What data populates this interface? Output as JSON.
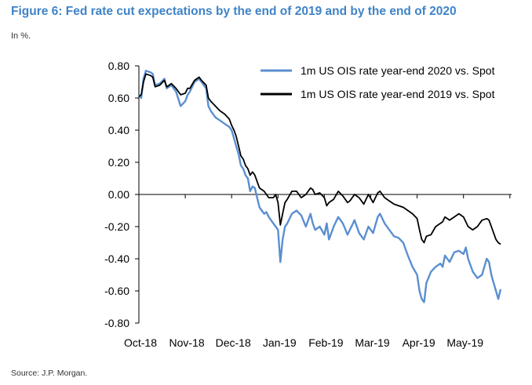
{
  "figure": {
    "title": "Figure 6: Fed rate cut expectations by the end of 2019 and by the end of 2020",
    "subtitle": "In %.",
    "source": "Source: J.P. Morgan."
  },
  "chart_data": {
    "type": "line",
    "title": "Figure 6: Fed rate cut expectations by the end of 2019 and by the end of 2020",
    "xlabel": "",
    "ylabel": "",
    "ylim": [
      -0.8,
      0.8
    ],
    "yticks": [
      0.8,
      0.6,
      0.4,
      0.2,
      0.0,
      -0.2,
      -0.4,
      -0.6,
      -0.8
    ],
    "ytick_labels": [
      "0.80",
      "0.60",
      "0.40",
      "0.20",
      "0.00",
      "-0.20",
      "-0.40",
      "-0.60",
      "-0.80"
    ],
    "x_categories": [
      "Oct-18",
      "Nov-18",
      "Dec-18",
      "Jan-19",
      "Feb-19",
      "Mar-19",
      "Apr-19",
      "May-19"
    ],
    "xlim_months": [
      0,
      7.8
    ],
    "grid": false,
    "legend_position": "top-right",
    "series": [
      {
        "name": "1m US OIS rate year-end 2020 vs. Spot",
        "color": "#5b8fd0",
        "points": [
          [
            0,
            0.62
          ],
          [
            0.05,
            0.6
          ],
          [
            0.1,
            0.72
          ],
          [
            0.15,
            0.77
          ],
          [
            0.25,
            0.76
          ],
          [
            0.3,
            0.75
          ],
          [
            0.35,
            0.68
          ],
          [
            0.45,
            0.69
          ],
          [
            0.55,
            0.72
          ],
          [
            0.6,
            0.66
          ],
          [
            0.7,
            0.68
          ],
          [
            0.8,
            0.64
          ],
          [
            0.9,
            0.55
          ],
          [
            1.0,
            0.58
          ],
          [
            1.05,
            0.62
          ],
          [
            1.1,
            0.64
          ],
          [
            1.2,
            0.7
          ],
          [
            1.3,
            0.72
          ],
          [
            1.35,
            0.7
          ],
          [
            1.45,
            0.66
          ],
          [
            1.5,
            0.55
          ],
          [
            1.55,
            0.52
          ],
          [
            1.65,
            0.48
          ],
          [
            1.75,
            0.46
          ],
          [
            1.85,
            0.44
          ],
          [
            1.95,
            0.42
          ],
          [
            2.0,
            0.4
          ],
          [
            2.05,
            0.35
          ],
          [
            2.1,
            0.3
          ],
          [
            2.15,
            0.25
          ],
          [
            2.2,
            0.18
          ],
          [
            2.25,
            0.16
          ],
          [
            2.3,
            0.12
          ],
          [
            2.35,
            0.1
          ],
          [
            2.4,
            0.02
          ],
          [
            2.45,
            0.05
          ],
          [
            2.5,
            0.04
          ],
          [
            2.55,
            -0.02
          ],
          [
            2.6,
            -0.08
          ],
          [
            2.65,
            -0.1
          ],
          [
            2.7,
            -0.12
          ],
          [
            2.75,
            -0.11
          ],
          [
            2.8,
            -0.14
          ],
          [
            2.85,
            -0.16
          ],
          [
            2.9,
            -0.18
          ],
          [
            2.95,
            -0.2
          ],
          [
            3.0,
            -0.22
          ],
          [
            3.05,
            -0.42
          ],
          [
            3.1,
            -0.28
          ],
          [
            3.15,
            -0.2
          ],
          [
            3.2,
            -0.18
          ],
          [
            3.3,
            -0.12
          ],
          [
            3.4,
            -0.1
          ],
          [
            3.5,
            -0.13
          ],
          [
            3.6,
            -0.2
          ],
          [
            3.7,
            -0.12
          ],
          [
            3.75,
            -0.18
          ],
          [
            3.8,
            -0.22
          ],
          [
            3.9,
            -0.2
          ],
          [
            4.0,
            -0.25
          ],
          [
            4.05,
            -0.18
          ],
          [
            4.1,
            -0.28
          ],
          [
            4.2,
            -0.2
          ],
          [
            4.3,
            -0.14
          ],
          [
            4.4,
            -0.18
          ],
          [
            4.5,
            -0.25
          ],
          [
            4.55,
            -0.22
          ],
          [
            4.65,
            -0.16
          ],
          [
            4.75,
            -0.24
          ],
          [
            4.85,
            -0.28
          ],
          [
            4.95,
            -0.2
          ],
          [
            5.05,
            -0.24
          ],
          [
            5.15,
            -0.14
          ],
          [
            5.2,
            -0.12
          ],
          [
            5.3,
            -0.18
          ],
          [
            5.4,
            -0.22
          ],
          [
            5.5,
            -0.26
          ],
          [
            5.6,
            -0.27
          ],
          [
            5.7,
            -0.3
          ],
          [
            5.8,
            -0.38
          ],
          [
            5.9,
            -0.45
          ],
          [
            6.0,
            -0.5
          ],
          [
            6.05,
            -0.6
          ],
          [
            6.1,
            -0.65
          ],
          [
            6.15,
            -0.67
          ],
          [
            6.2,
            -0.55
          ],
          [
            6.3,
            -0.48
          ],
          [
            6.4,
            -0.45
          ],
          [
            6.5,
            -0.43
          ],
          [
            6.55,
            -0.45
          ],
          [
            6.6,
            -0.38
          ],
          [
            6.7,
            -0.42
          ],
          [
            6.8,
            -0.36
          ],
          [
            6.9,
            -0.35
          ],
          [
            7.0,
            -0.37
          ],
          [
            7.05,
            -0.33
          ],
          [
            7.1,
            -0.4
          ],
          [
            7.2,
            -0.48
          ],
          [
            7.3,
            -0.52
          ],
          [
            7.4,
            -0.5
          ],
          [
            7.5,
            -0.4
          ],
          [
            7.55,
            -0.42
          ],
          [
            7.6,
            -0.5
          ],
          [
            7.65,
            -0.55
          ],
          [
            7.7,
            -0.6
          ],
          [
            7.75,
            -0.65
          ],
          [
            7.8,
            -0.59
          ]
        ]
      },
      {
        "name": "1m US OIS rate year-end 2019 vs. Spot",
        "color": "#000000",
        "points": [
          [
            0,
            0.61
          ],
          [
            0.05,
            0.62
          ],
          [
            0.1,
            0.7
          ],
          [
            0.15,
            0.75
          ],
          [
            0.25,
            0.74
          ],
          [
            0.3,
            0.73
          ],
          [
            0.35,
            0.67
          ],
          [
            0.45,
            0.68
          ],
          [
            0.55,
            0.71
          ],
          [
            0.6,
            0.67
          ],
          [
            0.7,
            0.69
          ],
          [
            0.8,
            0.66
          ],
          [
            0.9,
            0.62
          ],
          [
            1.0,
            0.63
          ],
          [
            1.05,
            0.66
          ],
          [
            1.1,
            0.66
          ],
          [
            1.2,
            0.71
          ],
          [
            1.3,
            0.73
          ],
          [
            1.35,
            0.71
          ],
          [
            1.45,
            0.68
          ],
          [
            1.5,
            0.6
          ],
          [
            1.55,
            0.58
          ],
          [
            1.65,
            0.55
          ],
          [
            1.75,
            0.52
          ],
          [
            1.85,
            0.5
          ],
          [
            1.95,
            0.47
          ],
          [
            2.0,
            0.43
          ],
          [
            2.05,
            0.4
          ],
          [
            2.1,
            0.36
          ],
          [
            2.15,
            0.3
          ],
          [
            2.2,
            0.24
          ],
          [
            2.25,
            0.22
          ],
          [
            2.3,
            0.18
          ],
          [
            2.35,
            0.16
          ],
          [
            2.4,
            0.12
          ],
          [
            2.45,
            0.14
          ],
          [
            2.5,
            0.12
          ],
          [
            2.55,
            0.08
          ],
          [
            2.6,
            0.04
          ],
          [
            2.7,
            0.02
          ],
          [
            2.8,
            -0.02
          ],
          [
            2.9,
            -0.02
          ],
          [
            2.95,
            0.0
          ],
          [
            3.0,
            -0.05
          ],
          [
            3.05,
            -0.19
          ],
          [
            3.1,
            -0.12
          ],
          [
            3.15,
            -0.05
          ],
          [
            3.2,
            -0.03
          ],
          [
            3.3,
            0.02
          ],
          [
            3.4,
            0.02
          ],
          [
            3.5,
            -0.02
          ],
          [
            3.6,
            0.0
          ],
          [
            3.7,
            0.04
          ],
          [
            3.75,
            0.03
          ],
          [
            3.8,
            0.0
          ],
          [
            3.9,
            0.01
          ],
          [
            4.0,
            -0.02
          ],
          [
            4.05,
            -0.07
          ],
          [
            4.1,
            -0.05
          ],
          [
            4.2,
            -0.03
          ],
          [
            4.3,
            0.02
          ],
          [
            4.4,
            -0.01
          ],
          [
            4.5,
            -0.05
          ],
          [
            4.55,
            -0.04
          ],
          [
            4.65,
            0.0
          ],
          [
            4.75,
            -0.02
          ],
          [
            4.85,
            -0.06
          ],
          [
            4.95,
            0.0
          ],
          [
            5.05,
            -0.05
          ],
          [
            5.15,
            0.01
          ],
          [
            5.2,
            0.02
          ],
          [
            5.3,
            -0.02
          ],
          [
            5.4,
            -0.04
          ],
          [
            5.5,
            -0.06
          ],
          [
            5.6,
            -0.07
          ],
          [
            5.7,
            -0.08
          ],
          [
            5.8,
            -0.1
          ],
          [
            5.9,
            -0.12
          ],
          [
            6.0,
            -0.15
          ],
          [
            6.05,
            -0.22
          ],
          [
            6.1,
            -0.28
          ],
          [
            6.15,
            -0.3
          ],
          [
            6.2,
            -0.26
          ],
          [
            6.3,
            -0.25
          ],
          [
            6.4,
            -0.2
          ],
          [
            6.5,
            -0.18
          ],
          [
            6.55,
            -0.17
          ],
          [
            6.6,
            -0.14
          ],
          [
            6.7,
            -0.16
          ],
          [
            6.8,
            -0.14
          ],
          [
            6.9,
            -0.12
          ],
          [
            7.0,
            -0.14
          ],
          [
            7.05,
            -0.17
          ],
          [
            7.1,
            -0.2
          ],
          [
            7.2,
            -0.22
          ],
          [
            7.3,
            -0.2
          ],
          [
            7.4,
            -0.16
          ],
          [
            7.5,
            -0.15
          ],
          [
            7.55,
            -0.16
          ],
          [
            7.6,
            -0.2
          ],
          [
            7.65,
            -0.24
          ],
          [
            7.7,
            -0.28
          ],
          [
            7.75,
            -0.3
          ],
          [
            7.8,
            -0.31
          ]
        ]
      }
    ]
  }
}
